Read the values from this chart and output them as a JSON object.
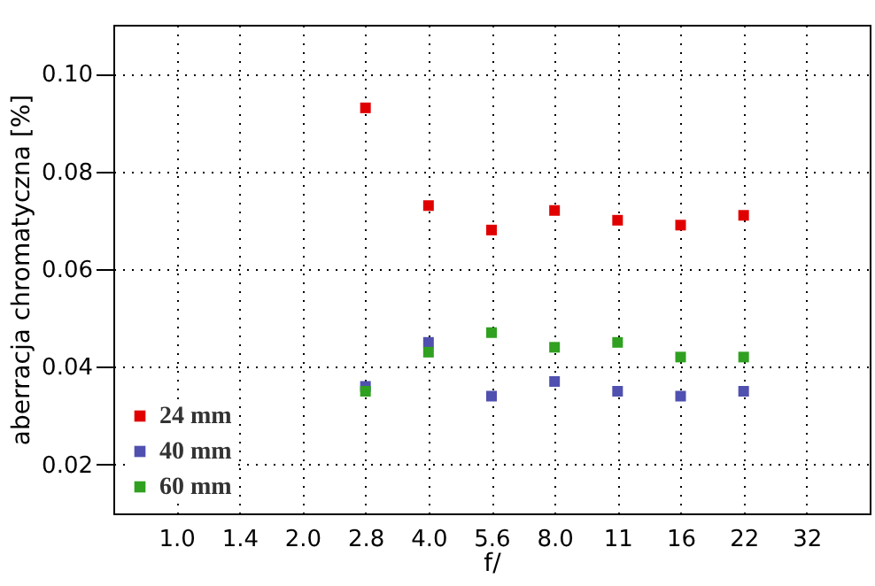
{
  "chart_data": {
    "type": "scatter",
    "xlabel": "f/",
    "ylabel": "aberracja chromatyczna [%]",
    "categories": [
      "1.0",
      "1.4",
      "2.0",
      "2.8",
      "4.0",
      "5.6",
      "8.0",
      "11",
      "16",
      "22",
      "32"
    ],
    "series": [
      {
        "name": "24 mm",
        "color": "#e00000",
        "values": [
          null,
          null,
          null,
          0.093,
          0.073,
          0.068,
          0.072,
          0.07,
          0.069,
          0.071,
          null
        ]
      },
      {
        "name": "40 mm",
        "color": "#5050b0",
        "values": [
          null,
          null,
          null,
          0.036,
          0.045,
          0.034,
          0.037,
          0.035,
          0.034,
          0.035,
          null
        ]
      },
      {
        "name": "60 mm",
        "color": "#30a020",
        "values": [
          null,
          null,
          null,
          0.035,
          0.043,
          0.047,
          0.044,
          0.045,
          0.042,
          0.042,
          null
        ]
      }
    ],
    "ylim": [
      0.01,
      0.11
    ],
    "yticks": [
      0.02,
      0.04,
      0.06,
      0.08,
      {
        "value": 0.1,
        "label": "0.10"
      }
    ],
    "grid": true,
    "legend": "bottom left",
    "marker": "square"
  }
}
